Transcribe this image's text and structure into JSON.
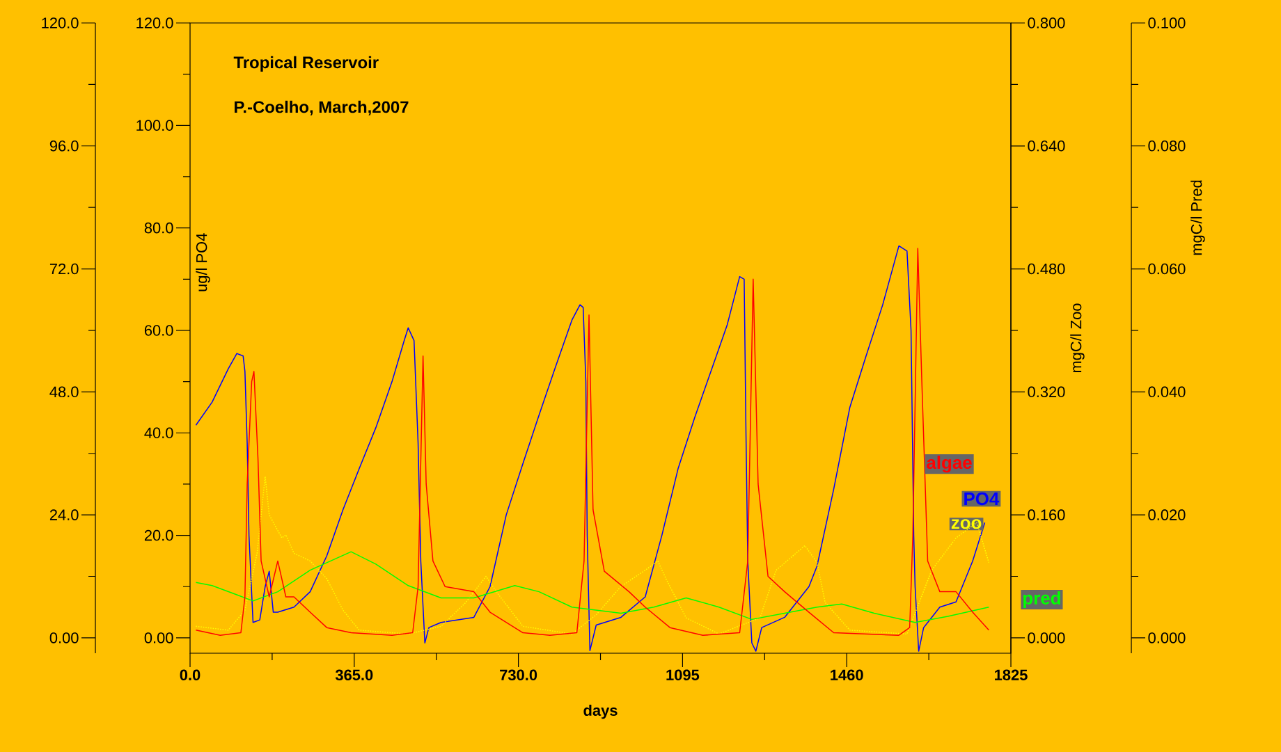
{
  "chart_data": [
    {
      "type": "line",
      "title": "Tropical Reservoir",
      "subtitle": "P.-Coelho, March,2007",
      "xlabel": "days",
      "ylabel": "ug/l PO4",
      "y2label": "mgC/l Zoo",
      "y3label": "mgC/l Pred",
      "xlim": [
        0,
        1825
      ],
      "xticks": [
        {
          "value": 0,
          "label": "0.0"
        },
        {
          "value": 365,
          "label": "365.0"
        },
        {
          "value": 730,
          "label": "730.0"
        },
        {
          "value": 1095,
          "label": "1095"
        },
        {
          "value": 1460,
          "label": "1460"
        },
        {
          "value": 1825,
          "label": "1825"
        }
      ],
      "ylim": [
        -3,
        120
      ],
      "yticks": [
        {
          "value": 0,
          "label": "0.00"
        },
        {
          "value": 20,
          "label": "20.0"
        },
        {
          "value": 40,
          "label": "40.0"
        },
        {
          "value": 60,
          "label": "60.0"
        },
        {
          "value": 80,
          "label": "80.0"
        },
        {
          "value": 100,
          "label": "100.0"
        },
        {
          "value": 120,
          "label": "120.0"
        }
      ],
      "y2lim": [
        -0.02,
        0.8
      ],
      "y2ticks": [
        {
          "value": 0,
          "label": "0.000"
        },
        {
          "value": 0.16,
          "label": "0.160"
        },
        {
          "value": 0.32,
          "label": "0.320"
        },
        {
          "value": 0.48,
          "label": "0.480"
        },
        {
          "value": 0.64,
          "label": "0.640"
        },
        {
          "value": 0.8,
          "label": "0.800"
        }
      ],
      "y3lim": [
        -0.0025,
        0.1
      ],
      "y3ticks": [
        {
          "value": 0,
          "label": "0.000"
        },
        {
          "value": 0.02,
          "label": "0.020"
        },
        {
          "value": 0.04,
          "label": "0.040"
        },
        {
          "value": 0.06,
          "label": "0.060"
        },
        {
          "value": 0.08,
          "label": "0.080"
        },
        {
          "value": 0.1,
          "label": "0.100"
        }
      ],
      "series": [
        {
          "name": "PO4",
          "color": "#0000ff",
          "line_style": "solid",
          "x": [
            13,
            49,
            85,
            104,
            118,
            122,
            127,
            131,
            140,
            155,
            167,
            176,
            185,
            195,
            231,
            267,
            304,
            340,
            376,
            413,
            449,
            476,
            485,
            498,
            507,
            513,
            522,
            531,
            558,
            631,
            667,
            703,
            740,
            776,
            813,
            849,
            867,
            874,
            880,
            883,
            889,
            903,
            958,
            1012,
            1049,
            1085,
            1122,
            1158,
            1194,
            1222,
            1232,
            1236,
            1240,
            1249,
            1258,
            1271,
            1322,
            1376,
            1394,
            1431,
            1467,
            1503,
            1540,
            1576,
            1594,
            1603,
            1609,
            1612,
            1620,
            1631,
            1667,
            1703,
            1740,
            1767
          ],
          "values": [
            41.5,
            46,
            52.5,
            55.5,
            55,
            52,
            38,
            20,
            3,
            3.5,
            10,
            13,
            5,
            5,
            6,
            9,
            16,
            25,
            33,
            41,
            50,
            58,
            60.5,
            58,
            38,
            15,
            -1,
            2,
            3,
            4,
            10,
            24,
            34,
            43.5,
            53,
            62,
            65,
            64.5,
            50,
            20,
            -2.5,
            2.5,
            4,
            8,
            20,
            33,
            43,
            52,
            61,
            70.5,
            70,
            40,
            15,
            -1,
            -2.6,
            2,
            4,
            10,
            14,
            29,
            45,
            55,
            65,
            76.5,
            75.5,
            60,
            20,
            10,
            -2.6,
            2,
            6,
            7,
            15,
            22.5
          ]
        },
        {
          "name": "zoo",
          "color": "#ffff00",
          "axis": "y2",
          "line_style": "dotted",
          "x": [
            13,
            85,
            122,
            149,
            167,
            176,
            204,
            213,
            231,
            267,
            304,
            340,
            376,
            485,
            558,
            613,
            658,
            685,
            740,
            849,
            903,
            958,
            1012,
            1040,
            1058,
            1103,
            1176,
            1267,
            1303,
            1367,
            1394,
            1412,
            1467,
            1594,
            1649,
            1703,
            1749,
            1776
          ],
          "values": [
            0.015,
            0.01,
            0.036,
            0.11,
            0.21,
            0.16,
            0.13,
            0.134,
            0.11,
            0.1,
            0.077,
            0.036,
            0.01,
            0.005,
            0.015,
            0.046,
            0.08,
            0.057,
            0.015,
            0.005,
            0.03,
            0.067,
            0.088,
            0.1,
            0.077,
            0.026,
            0.005,
            0.026,
            0.088,
            0.12,
            0.098,
            0.046,
            0.01,
            0.005,
            0.088,
            0.13,
            0.15,
            0.098
          ]
        },
        {
          "name": "pred",
          "color": "#00ff00",
          "axis": "y3",
          "line_style": "solid",
          "x": [
            13,
            49,
            104,
            140,
            195,
            267,
            358,
            413,
            485,
            558,
            631,
            722,
            776,
            849,
            958,
            1031,
            1103,
            1176,
            1249,
            1322,
            1394,
            1449,
            1521,
            1612,
            1685,
            1776
          ],
          "values": [
            0.009,
            0.0085,
            0.007,
            0.006,
            0.0075,
            0.011,
            0.014,
            0.012,
            0.0085,
            0.0065,
            0.0065,
            0.0085,
            0.0075,
            0.005,
            0.004,
            0.005,
            0.0065,
            0.005,
            0.003,
            0.004,
            0.005,
            0.0055,
            0.004,
            0.0025,
            0.0035,
            0.005
          ]
        }
      ]
    },
    {
      "type": "line",
      "tick_labels": "y",
      "xlim": [
        0,
        1825
      ],
      "ylim": [
        -3,
        120
      ],
      "yticks": [
        {
          "value": 0,
          "label": "0.00"
        },
        {
          "value": 24,
          "label": "24.0"
        },
        {
          "value": 48,
          "label": "48.0"
        },
        {
          "value": 72,
          "label": "72.0"
        },
        {
          "value": 96,
          "label": "96.0"
        },
        {
          "value": 120,
          "label": "120.0"
        }
      ],
      "series": [
        {
          "name": "algae",
          "color": "#ff0000",
          "line_style": "solid",
          "x": [
            13,
            67,
            113,
            122,
            127,
            137,
            142,
            151,
            158,
            176,
            195,
            213,
            231,
            267,
            304,
            358,
            449,
            495,
            507,
            518,
            525,
            540,
            567,
            631,
            667,
            740,
            800,
            860,
            876,
            887,
            896,
            921,
            976,
            1012,
            1067,
            1140,
            1222,
            1240,
            1252,
            1263,
            1285,
            1322,
            1376,
            1431,
            1576,
            1600,
            1607,
            1618,
            1627,
            1640,
            1667,
            1703,
            1740,
            1776
          ],
          "values": [
            1.5,
            0.5,
            1,
            8,
            30,
            50,
            52,
            35,
            15,
            8,
            15,
            8,
            8,
            5,
            2,
            1,
            0.5,
            1,
            10,
            55,
            30,
            15,
            10,
            9,
            5,
            1,
            0.5,
            1,
            15,
            63,
            25,
            13,
            9,
            6,
            2,
            0.5,
            1,
            15,
            70,
            30,
            12,
            9,
            5,
            1,
            0.5,
            2,
            20,
            76,
            50,
            15,
            9,
            9,
            5,
            1.5
          ]
        }
      ]
    }
  ]
}
